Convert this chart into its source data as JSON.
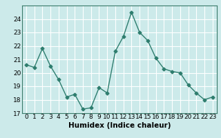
{
  "x": [
    0,
    1,
    2,
    3,
    4,
    5,
    6,
    7,
    8,
    9,
    10,
    11,
    12,
    13,
    14,
    15,
    16,
    17,
    18,
    19,
    20,
    21,
    22,
    23
  ],
  "y": [
    20.6,
    20.4,
    21.8,
    20.5,
    19.5,
    18.2,
    18.4,
    17.3,
    17.4,
    18.9,
    18.5,
    21.6,
    22.7,
    24.5,
    23.0,
    22.4,
    21.1,
    20.3,
    20.1,
    20.0,
    19.1,
    18.5,
    18.0,
    18.2
  ],
  "xlabel": "Humidex (Indice chaleur)",
  "ylim": [
    17,
    25
  ],
  "xlim": [
    -0.5,
    23.5
  ],
  "yticks": [
    17,
    18,
    19,
    20,
    21,
    22,
    23,
    24
  ],
  "xticks": [
    0,
    1,
    2,
    3,
    4,
    5,
    6,
    7,
    8,
    9,
    10,
    11,
    12,
    13,
    14,
    15,
    16,
    17,
    18,
    19,
    20,
    21,
    22,
    23
  ],
  "line_color": "#2e7d6e",
  "marker": "D",
  "marker_size": 2.5,
  "bg_color": "#cceaea",
  "grid_color": "#ffffff",
  "tick_label_fontsize": 6.5,
  "xlabel_fontsize": 7.5,
  "line_width": 1.0
}
